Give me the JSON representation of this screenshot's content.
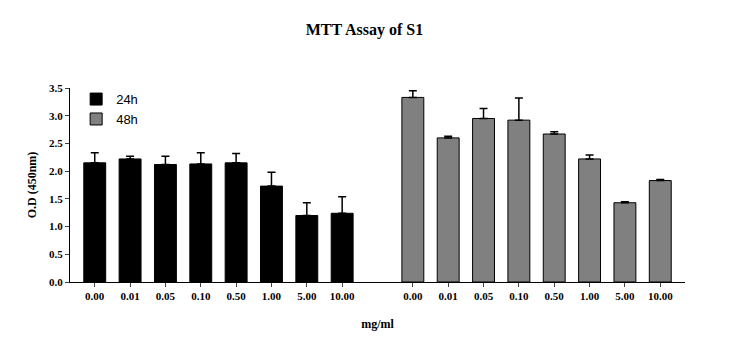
{
  "chart_data": {
    "type": "bar",
    "title": "MTT Assay of S1",
    "x_label": "mg/ml",
    "y_label": "O.D (450nm)",
    "categories": [
      "0.00",
      "0.01",
      "0.05",
      "0.10",
      "0.50",
      "1.00",
      "5.00",
      "10.00",
      null,
      "0.00",
      "0.01",
      "0.05",
      "0.10",
      "0.50",
      "1.00",
      "5.00",
      "10.00"
    ],
    "series": [
      {
        "name": "24h",
        "color": "#000000",
        "values": [
          2.15,
          2.22,
          2.12,
          2.13,
          2.15,
          1.73,
          1.2,
          1.24,
          null,
          null,
          null,
          null,
          null,
          null,
          null,
          null,
          null
        ],
        "errors": [
          0.18,
          0.05,
          0.15,
          0.2,
          0.17,
          0.25,
          0.23,
          0.3,
          null,
          null,
          null,
          null,
          null,
          null,
          null,
          null,
          null
        ]
      },
      {
        "name": "48h",
        "color": "#808080",
        "values": [
          null,
          null,
          null,
          null,
          null,
          null,
          null,
          null,
          null,
          3.33,
          2.6,
          2.95,
          2.92,
          2.67,
          2.22,
          1.43,
          1.83
        ],
        "errors": [
          null,
          null,
          null,
          null,
          null,
          null,
          null,
          null,
          null,
          0.12,
          0.03,
          0.18,
          0.4,
          0.04,
          0.07,
          0.02,
          0.02
        ]
      }
    ],
    "ylim": [
      0,
      3.5
    ],
    "yticks": [
      {
        "value": 0,
        "label": "0.0"
      },
      0.5,
      {
        "value": 1,
        "label": "1.0"
      },
      1.5,
      {
        "value": 2,
        "label": "2.0"
      },
      2.5,
      {
        "value": 3,
        "label": "3.0"
      },
      3.5
    ],
    "grid": false,
    "legend": "upper left"
  }
}
